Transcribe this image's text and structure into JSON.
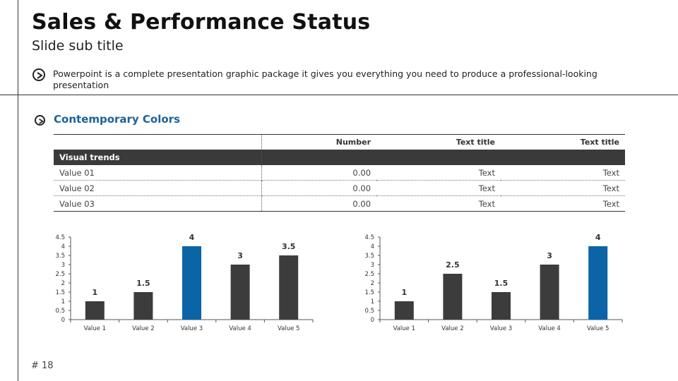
{
  "slide": {
    "title": "Sales & Performance Status",
    "subtitle": "Slide sub title",
    "description": "Powerpoint is a complete presentation graphic package it gives you everything you need to produce a professional-looking presentation",
    "section_heading": "Contemporary Colors",
    "page_number": "# 18"
  },
  "colors": {
    "accent": "#0b64a6",
    "bar": "#3c3c3c",
    "heading": "#1e6296"
  },
  "table": {
    "columns": [
      "",
      "Number",
      "Text title",
      "Text title"
    ],
    "band_label": "Visual trends",
    "rows": [
      [
        "Value 01",
        "0.00",
        "Text",
        "Text"
      ],
      [
        "Value 02",
        "0.00",
        "Text",
        "Text"
      ],
      [
        "Value 03",
        "0.00",
        "Text",
        "Text"
      ]
    ]
  },
  "chart_data": [
    {
      "type": "bar",
      "categories": [
        "Value 1",
        "Value 2",
        "Value 3",
        "Value 4",
        "Value 5"
      ],
      "values": [
        1,
        1.5,
        4,
        3,
        3.5
      ],
      "highlight_index": 2,
      "ylim": [
        0,
        4.5
      ],
      "yticks": [
        "0",
        "0.5",
        "1",
        "1.5",
        "2",
        "2.5",
        "3",
        "3.5",
        "4",
        "4.5"
      ],
      "data_labels": [
        "1",
        "1.5",
        "4",
        "3",
        "3.5"
      ],
      "grid": false
    },
    {
      "type": "bar",
      "categories": [
        "Value 1",
        "Value 2",
        "Value 3",
        "Value 4",
        "Value 5"
      ],
      "values": [
        1,
        2.5,
        1.5,
        3,
        4
      ],
      "highlight_index": 4,
      "ylim": [
        0,
        4.5
      ],
      "yticks": [
        "0",
        "0.5",
        "1",
        "1.5",
        "2",
        "2.5",
        "3",
        "3.5",
        "4",
        "4.5"
      ],
      "data_labels": [
        "1",
        "2.5",
        "1.5",
        "3",
        "4"
      ],
      "grid": false
    }
  ]
}
